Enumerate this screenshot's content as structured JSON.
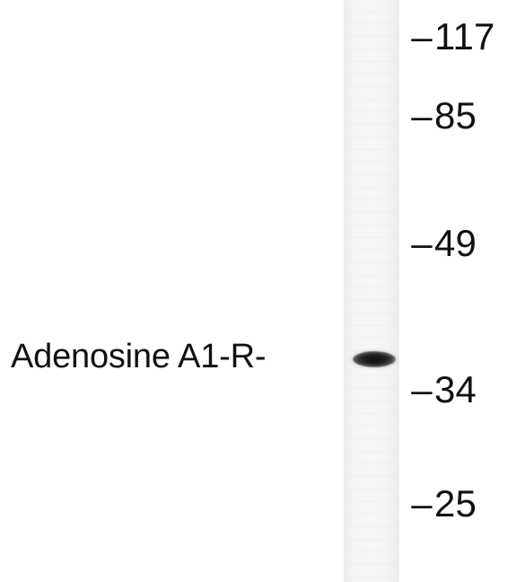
{
  "blot": {
    "band_label": "Adenosine A1-R-",
    "markers": [
      {
        "value": "117"
      },
      {
        "value": "85"
      },
      {
        "value": "49"
      },
      {
        "value": "34"
      },
      {
        "value": "25"
      }
    ],
    "marker_dash": "–"
  }
}
